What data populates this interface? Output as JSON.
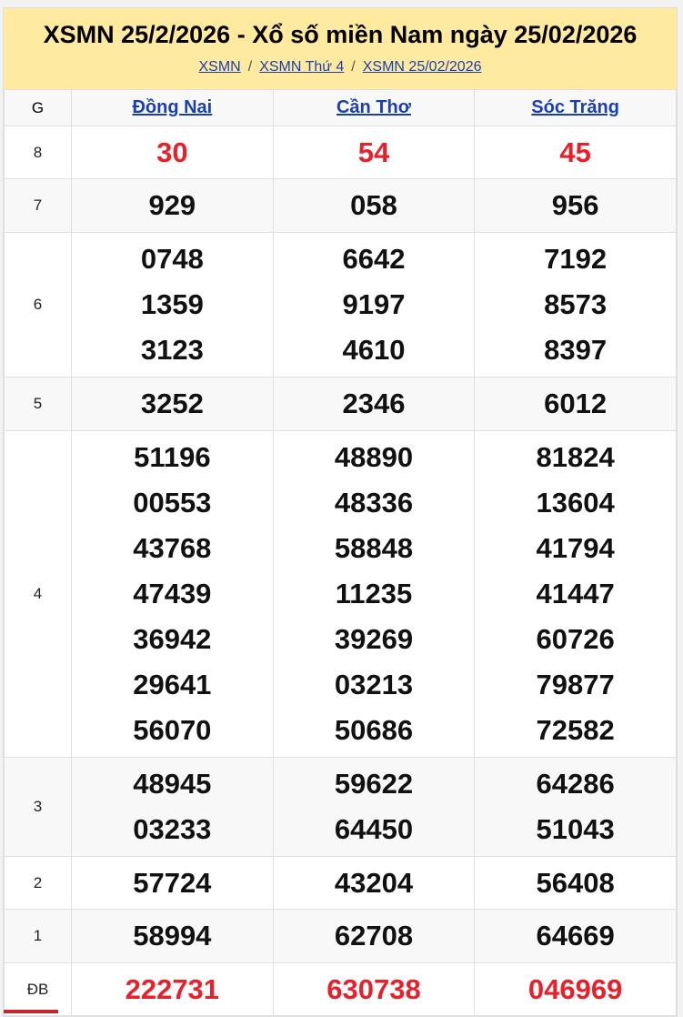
{
  "header": {
    "title": "XSMN 25/2/2026 - Xổ số miền Nam ngày 25/02/2026",
    "breadcrumbs": [
      "XSMN",
      "XSMN Thứ 4",
      "XSMN 25/02/2026"
    ],
    "separator": "/"
  },
  "table": {
    "col_g": "G",
    "provinces": [
      "Đồng Nai",
      "Cần Thơ",
      "Sóc Trăng"
    ],
    "rows": [
      {
        "prize": "8",
        "red": true,
        "values": [
          [
            "30"
          ],
          [
            "54"
          ],
          [
            "45"
          ]
        ]
      },
      {
        "prize": "7",
        "values": [
          [
            "929"
          ],
          [
            "058"
          ],
          [
            "956"
          ]
        ]
      },
      {
        "prize": "6",
        "values": [
          [
            "0748",
            "1359",
            "3123"
          ],
          [
            "6642",
            "9197",
            "4610"
          ],
          [
            "7192",
            "8573",
            "8397"
          ]
        ]
      },
      {
        "prize": "5",
        "values": [
          [
            "3252"
          ],
          [
            "2346"
          ],
          [
            "6012"
          ]
        ]
      },
      {
        "prize": "4",
        "values": [
          [
            "51196",
            "00553",
            "43768",
            "47439",
            "36942",
            "29641",
            "56070"
          ],
          [
            "48890",
            "48336",
            "58848",
            "11235",
            "39269",
            "03213",
            "50686"
          ],
          [
            "81824",
            "13604",
            "41794",
            "41447",
            "60726",
            "79877",
            "72582"
          ]
        ]
      },
      {
        "prize": "3",
        "values": [
          [
            "48945",
            "03233"
          ],
          [
            "59622",
            "64450"
          ],
          [
            "64286",
            "51043"
          ]
        ]
      },
      {
        "prize": "2",
        "values": [
          [
            "57724"
          ],
          [
            "43204"
          ],
          [
            "56408"
          ]
        ]
      },
      {
        "prize": "1",
        "values": [
          [
            "58994"
          ],
          [
            "62708"
          ],
          [
            "64669"
          ]
        ]
      },
      {
        "prize": "ĐB",
        "red": true,
        "values": [
          [
            "222731"
          ],
          [
            "630738"
          ],
          [
            "046969"
          ]
        ]
      }
    ]
  },
  "colors": {
    "header_bg": "#ffeaa0",
    "link": "#1a3fb0",
    "red": "#e8202a"
  }
}
